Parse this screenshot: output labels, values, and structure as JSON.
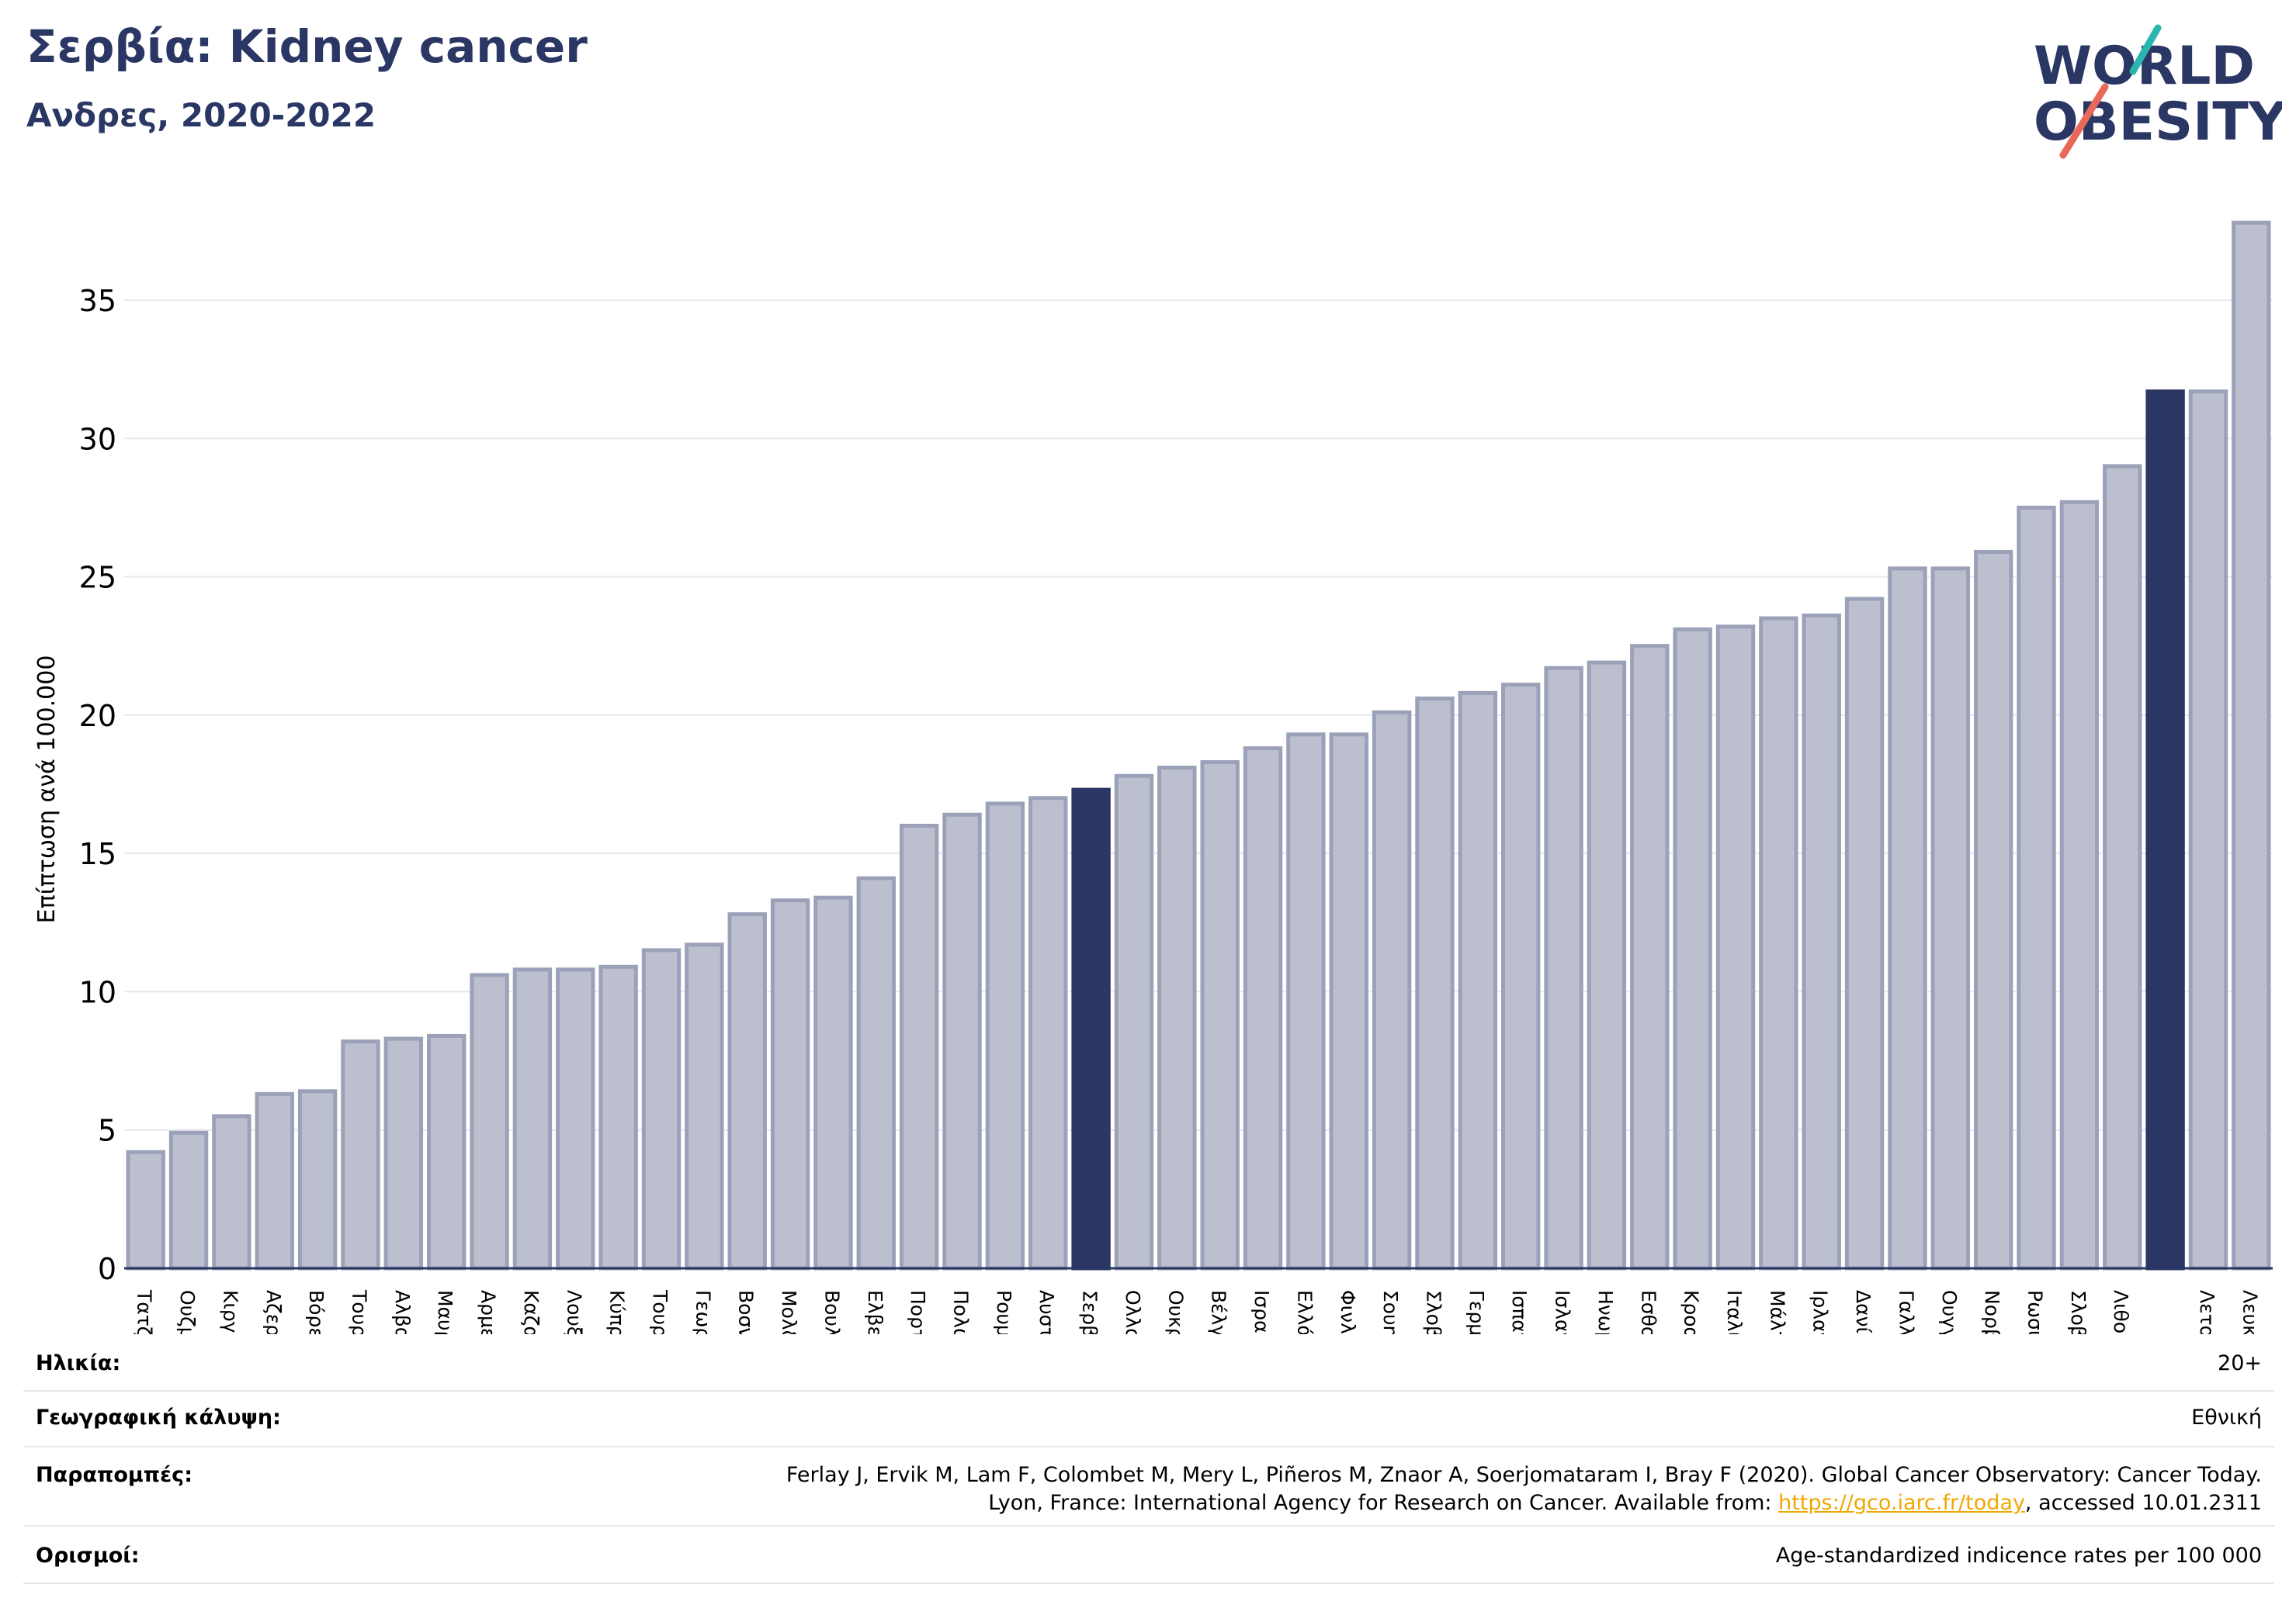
{
  "header": {
    "title": "Σερβία: Kidney cancer",
    "subtitle": "Ανδρες, 2020-2022"
  },
  "logo": {
    "line1": "WORLD",
    "line2": "OBESITY",
    "color_text": "#2a3663",
    "color_teal": "#2bb5b0",
    "color_coral": "#e8685a"
  },
  "chart_data": {
    "type": "bar",
    "ylabel": "Επίπτωση ανά 100.000",
    "ylim": [
      0,
      38
    ],
    "yticks": [
      0,
      5,
      10,
      15,
      20,
      25,
      30,
      35
    ],
    "grid": true,
    "colors": {
      "bar": "#bcc0ce",
      "bar_edge": "#9ba1b8",
      "highlight": "#2a3663"
    },
    "categories": [
      "Τατζικιστάν",
      "Ουζμπεκιστάν",
      "Κιργιστάν",
      "Αζερμπαϊτζάν",
      "Βόρεια Μακεδονία",
      "Τουρκμενιστάν",
      "Αλβανία",
      "Μαυροβούνιο",
      "Αρμενία",
      "Καζακστάν",
      "Λουξεμβούργο",
      "Κύπρος",
      "Τουρκία",
      "Γεωργία",
      "Βοσνία και Ερζεγοβίνη",
      "Μολδαβία",
      "Βουλγαρία",
      "Ελβετία",
      "Πορτογαλία",
      "Πολωνία",
      "Ρουμανία",
      "Αυστρία",
      "Σερβία",
      "Ολλανδία",
      "Ουκρανία",
      "Βέλγιο",
      "Ισραήλ",
      "Ελλάδα",
      "Φινλανδία",
      "Σουηδία",
      "Σλοβενία",
      "Γερμανία",
      "Ισπανία",
      "Ισλανδία",
      "Ηνωμένο Βασίλειο",
      "Εσθονία",
      "Κροατία",
      "Ιταλία",
      "Μάλτα",
      "Ιρλανδία",
      "Δανία",
      "Γαλλία",
      "Ουγγαρία",
      "Νορβηγία",
      "Ρωσική Ομοσπονδία",
      "Σλοβακία",
      "Λιθουανία",
      "",
      "Λετονία",
      "Λευκορωσία"
    ],
    "values": [
      4.2,
      4.9,
      5.5,
      6.3,
      6.4,
      8.2,
      8.3,
      8.4,
      10.6,
      10.8,
      10.8,
      10.9,
      11.5,
      11.7,
      12.8,
      13.3,
      13.4,
      14.1,
      16.0,
      16.4,
      16.8,
      17.0,
      17.3,
      17.8,
      18.1,
      18.3,
      18.8,
      19.3,
      19.3,
      20.1,
      20.6,
      20.8,
      21.1,
      21.7,
      21.9,
      22.5,
      23.1,
      23.2,
      23.5,
      23.6,
      24.2,
      25.3,
      25.3,
      25.9,
      27.5,
      27.7,
      29.0,
      31.7,
      31.7,
      37.8
    ],
    "highlight": [
      22,
      47
    ]
  },
  "info": {
    "age_label": "Ηλικία:",
    "age_value": "20+",
    "coverage_label": "Γεωγραφική κάλυψη:",
    "coverage_value": "Εθνική",
    "refs_label": "Παραπομπές:",
    "refs_line1": "Ferlay J, Ervik M, Lam F, Colombet M, Mery L, Piñeros M, Znaor A, Soerjomataram I, Bray F (2020). Global Cancer Observatory: Cancer Today.",
    "refs_line2_pre": "Lyon, France: International Agency for Research on Cancer. Available from: ",
    "refs_link": "https://gco.iarc.fr/today",
    "refs_line2_post": ", accessed 10.01.2311",
    "defs_label": "Ορισμοί:",
    "defs_value": "Age-standardized indicence rates per 100 000"
  }
}
